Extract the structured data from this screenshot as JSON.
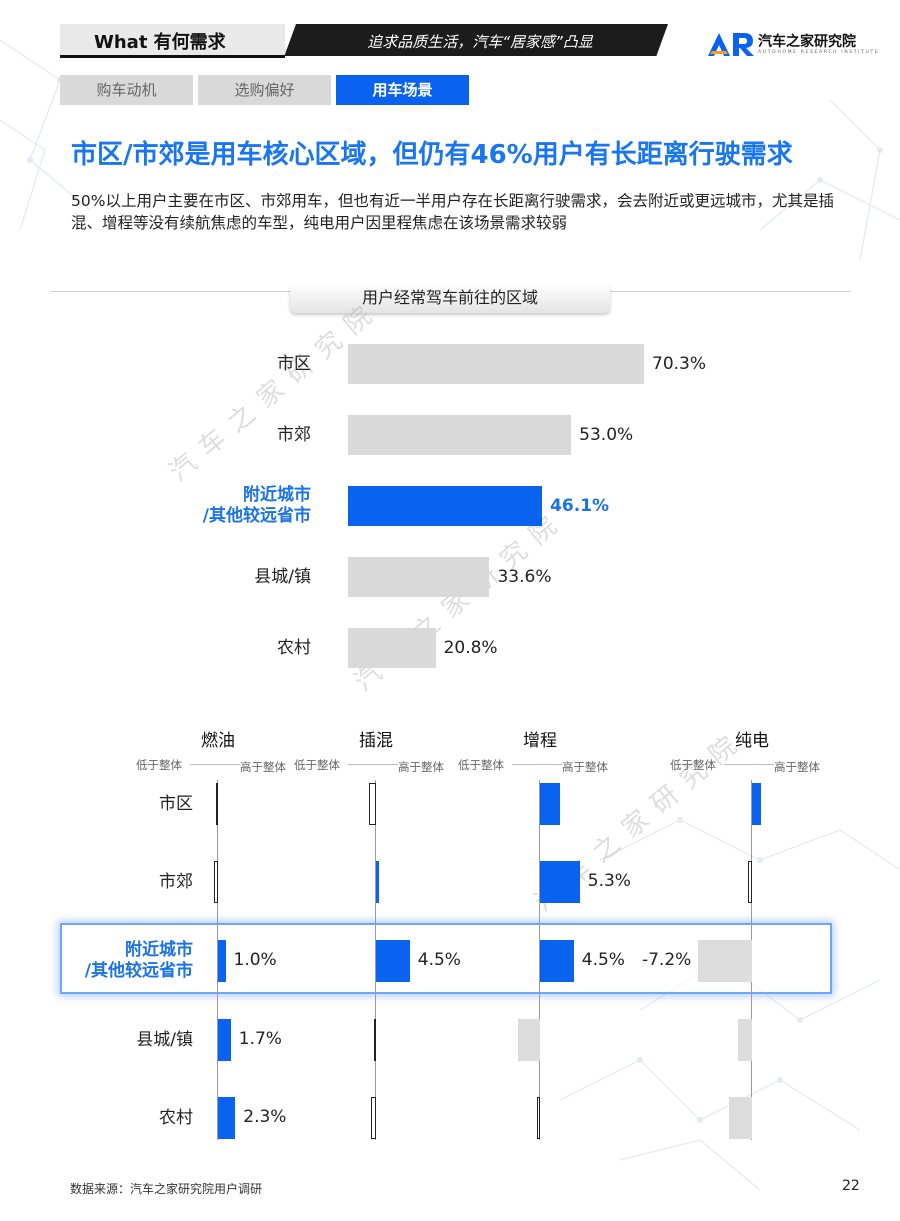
{
  "header": {
    "section_label": "What 有何需求",
    "banner_text": "追求品质生活，汽车“居家感”凸显",
    "logo_cn": "汽车之家研究院",
    "logo_en": "AUTOHOME RESEARCH INSTITUTE"
  },
  "tabs": [
    {
      "label": "购车动机",
      "active": false
    },
    {
      "label": "选购偏好",
      "active": false
    },
    {
      "label": "用车场景",
      "active": true
    }
  ],
  "headline": "市区/市郊是用车核心区域，但仍有46%用户有长距离行驶需求",
  "paragraph": "50%以上用户主要在市区、市郊用车，但也有近一半用户存在长距离行驶需求，会去附近或更远城市，尤其是插混、增程等没有续航焦虑的车型，纯电用户因里程焦虑在该场景需求较弱",
  "watermark": "汽车之家研究院",
  "colors": {
    "accent": "#1a73e8",
    "bar_grey": "#d9d9d9",
    "bar_blue": "#0a63f0",
    "headline": "#1976f0"
  },
  "chart_data": [
    {
      "type": "bar",
      "orientation": "horizontal",
      "title": "用户经常驾车前往的区域",
      "categories": [
        "市区",
        "市郊",
        "附近城市\n/其他较远省市",
        "县城/镇",
        "农村"
      ],
      "category_lines": [
        [
          "市区"
        ],
        [
          "市郊"
        ],
        [
          "附近城市",
          "/其他较远省市"
        ],
        [
          "县城/镇"
        ],
        [
          "农村"
        ]
      ],
      "values": [
        70.3,
        53.0,
        46.1,
        33.6,
        20.8
      ],
      "labels": [
        "70.3%",
        "53.0%",
        "46.1%",
        "33.6%",
        "20.8%"
      ],
      "highlight_index": 2,
      "unit": "%"
    },
    {
      "type": "bar",
      "orientation": "horizontal-diverging",
      "series_names": [
        "燃油",
        "插混",
        "增程",
        "纯电"
      ],
      "low_label": "低于整体",
      "high_label": "高于整体",
      "categories": [
        "市区",
        "市郊",
        "附近城市\n/其他较远省市",
        "县城/镇",
        "农村"
      ],
      "category_lines": [
        [
          "市区"
        ],
        [
          "市郊"
        ],
        [
          "附近城市",
          "/其他较远省市"
        ],
        [
          "县城/镇"
        ],
        [
          "农村"
        ]
      ],
      "highlight_index": 2,
      "series": [
        {
          "name": "燃油",
          "values": [
            -0.3,
            -0.6,
            1.0,
            1.7,
            2.3
          ],
          "labels": [
            "",
            "",
            "1.0%",
            "1.7%",
            "2.3%"
          ]
        },
        {
          "name": "插混",
          "values": [
            -1.0,
            0.4,
            4.5,
            -0.2,
            -0.7
          ],
          "labels": [
            "",
            "",
            "4.5%",
            "",
            ""
          ]
        },
        {
          "name": "增程",
          "values": [
            2.6,
            5.3,
            4.5,
            -2.9,
            -0.4
          ],
          "labels": [
            "",
            "5.3%",
            "4.5%",
            "",
            ""
          ]
        },
        {
          "name": "纯电",
          "values": [
            1.2,
            -0.6,
            -7.2,
            -1.9,
            -3.1
          ],
          "labels": [
            "",
            "",
            "-7.2%",
            "",
            ""
          ]
        }
      ]
    }
  ],
  "footer": {
    "source": "数据来源：汽车之家研究院用户调研",
    "page_number": "22"
  }
}
